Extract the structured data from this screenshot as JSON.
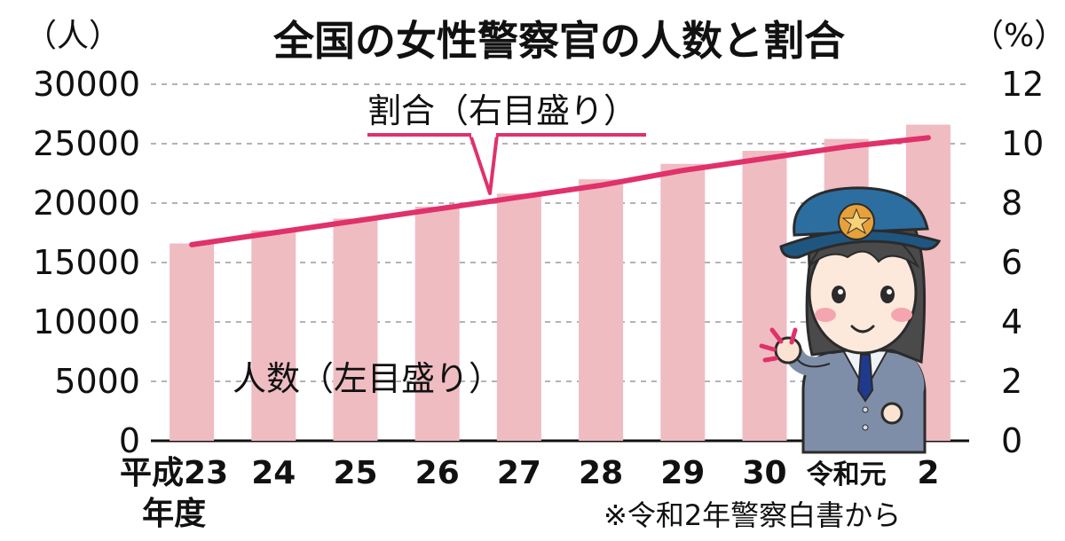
{
  "chart_data": {
    "type": "bar+line",
    "title": "全国の女性警察官の人数と割合",
    "categories": [
      "平成23年度",
      "24",
      "25",
      "26",
      "27",
      "28",
      "29",
      "30",
      "令和元",
      "2"
    ],
    "category_lines": [
      [
        "平成23",
        "年度"
      ],
      [
        "24"
      ],
      [
        "25"
      ],
      [
        "26"
      ],
      [
        "27"
      ],
      [
        "28"
      ],
      [
        "29"
      ],
      [
        "30"
      ],
      [
        "令和元"
      ],
      [
        "2"
      ]
    ],
    "left_axis": {
      "unit": "（人）",
      "min": 0,
      "max": 30000,
      "ticks": [
        "0",
        "5000",
        "10000",
        "15000",
        "20000",
        "25000",
        "30000"
      ]
    },
    "right_axis": {
      "unit": "（%）",
      "min": 0,
      "max": 12,
      "ticks": [
        "0",
        "2",
        "4",
        "6",
        "8",
        "10",
        "12"
      ]
    },
    "series": [
      {
        "name": "人数（左目盛り）",
        "type": "bar",
        "axis": "left",
        "color": "#efbcc2",
        "values": [
          16600,
          17700,
          18700,
          19700,
          20800,
          22000,
          23300,
          24400,
          25400,
          26600
        ]
      },
      {
        "name": "割合（右目盛り）",
        "type": "line",
        "axis": "right",
        "color": "#e0316a",
        "values": [
          6.6,
          7.0,
          7.4,
          7.8,
          8.2,
          8.6,
          9.1,
          9.5,
          9.9,
          10.2
        ]
      }
    ],
    "annotations": {
      "ratio_label": "割合（右目盛り）",
      "count_label": "人数（左目盛り）"
    },
    "note": "※令和2年警察白書から",
    "grid": true
  }
}
